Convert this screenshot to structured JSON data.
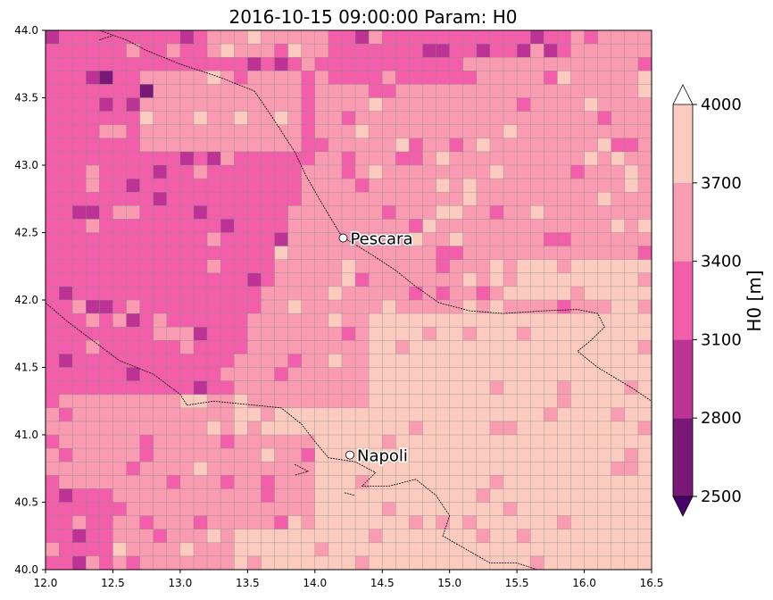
{
  "title": "2016-10-15 09:00:00 Param: H0",
  "map": {
    "lon_range": [
      12.0,
      16.5
    ],
    "lat_range": [
      40.0,
      44.0
    ],
    "x_ticks": [
      "12.0",
      "12.5",
      "13.0",
      "13.5",
      "14.0",
      "14.5",
      "15.0",
      "15.5",
      "16.0",
      "16.5"
    ],
    "y_ticks": [
      "40.0",
      "40.5",
      "41.0",
      "41.5",
      "42.0",
      "42.5",
      "43.0",
      "43.5",
      "44.0"
    ],
    "grid_cells": {
      "cols": 45,
      "rows": 40,
      "resolution_deg": 0.1
    },
    "cities": [
      {
        "name": "Pescara",
        "lon": 14.21,
        "lat": 42.46
      },
      {
        "name": "Napoli",
        "lon": 14.26,
        "lat": 40.85
      }
    ]
  },
  "colorbar": {
    "label": "H0  [m]",
    "ticks": [
      "2500",
      "2800",
      "3100",
      "3400",
      "3700",
      "4000"
    ],
    "levels": [
      2500,
      2800,
      3100,
      3400,
      3700,
      4000
    ],
    "colors": [
      "#7a1878",
      "#bd3395",
      "#f25eaa",
      "#fa9cb1",
      "#fccbbf"
    ],
    "extend_over_color": "#ffffff",
    "extend_under_color": "#49006a"
  },
  "colors": {
    "gridline": "#8c8c8c",
    "coastline": "#000000"
  }
}
